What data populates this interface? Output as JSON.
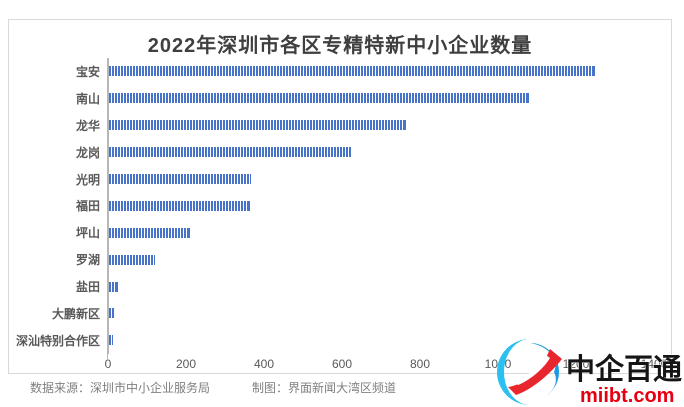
{
  "title": "2022年深圳市各区专精特新中小企业数量",
  "chart_data": {
    "type": "bar",
    "orientation": "horizontal",
    "title": "2022年深圳市各区专精特新中小企业数量",
    "categories": [
      "宝安",
      "南山",
      "龙华",
      "龙岗",
      "光明",
      "福田",
      "坪山",
      "罗湖",
      "盐田",
      "大鹏新区",
      "深汕特别合作区"
    ],
    "values": [
      1243,
      1073,
      760,
      618,
      362,
      358,
      206,
      114,
      21,
      10,
      8
    ],
    "xlabel": "",
    "ylabel": "",
    "xlim": [
      0,
      1400
    ],
    "xticks": [
      0,
      200,
      400,
      600,
      800,
      1000,
      1200,
      1400
    ],
    "grid": false,
    "legend": "none",
    "bar_color": "#4774c8",
    "bar_pattern": "vertical-stripes",
    "axis_color": "#b7b7b7",
    "label_color": "#595959"
  },
  "footer": {
    "source": "数据来源：深圳市中小企业服务局",
    "credit": "制图：界面新闻大湾区频道"
  },
  "watermark": {
    "brand": "中企百通",
    "domain": "miibt.com",
    "brand_color": "#151515",
    "domain_color": "#e60012",
    "logo_cyan": "#2bc0ef",
    "logo_blue": "#1f9ade",
    "logo_red": "#e8262d"
  }
}
